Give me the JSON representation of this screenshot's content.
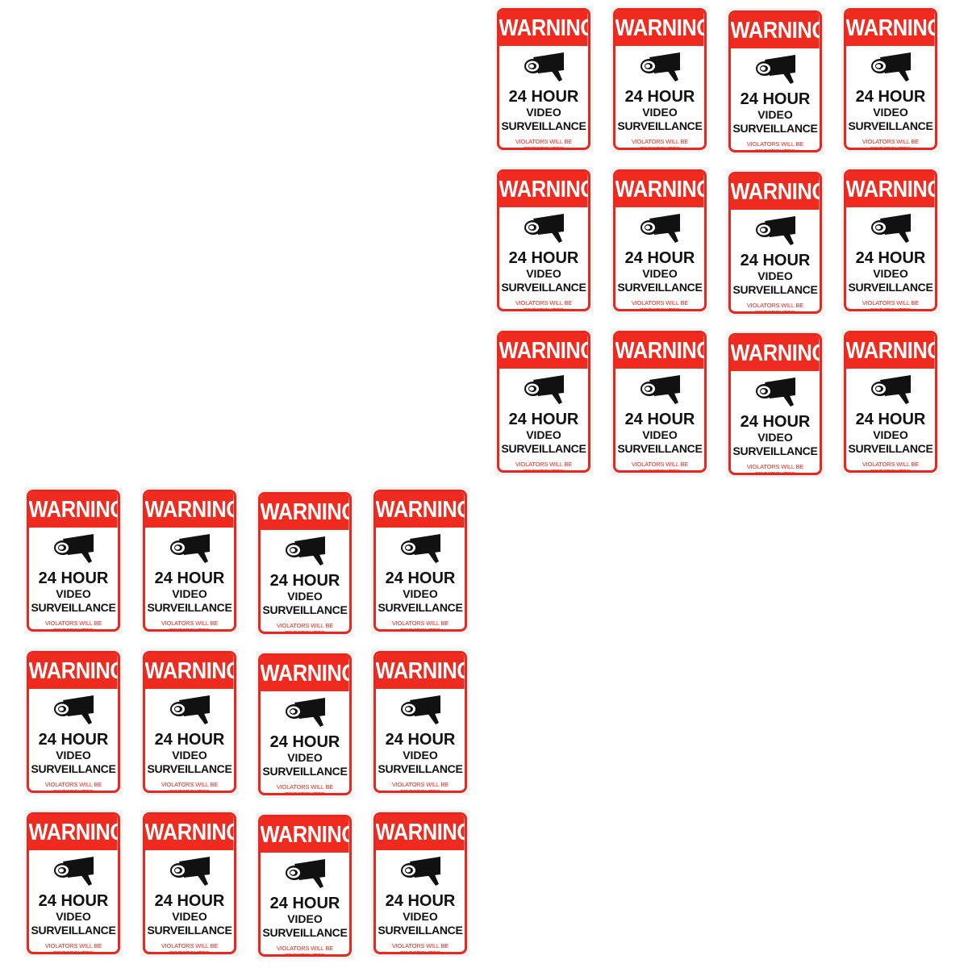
{
  "sign": {
    "header": "WARNING",
    "line1": "24 HOUR",
    "line2": "VIDEO",
    "line3": "SURVEILLANCE",
    "footer": "VIOLATORS WILL BE PROSECUTED",
    "icon": "security-camera-icon"
  },
  "colors": {
    "red": "#ef2a1f",
    "black": "#111111",
    "white": "#ffffff"
  },
  "groups": [
    {
      "name": "top-right-sheet",
      "rows": 3,
      "cols": 4
    },
    {
      "name": "bottom-left-sheet",
      "rows": 3,
      "cols": 4
    }
  ]
}
